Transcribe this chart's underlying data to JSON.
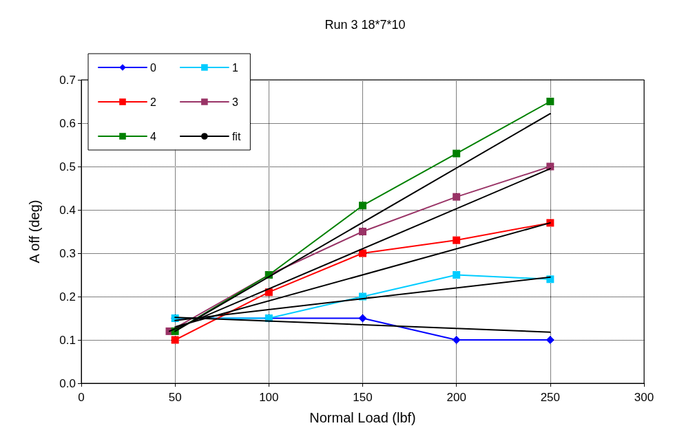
{
  "chart_data": {
    "type": "line",
    "title": "Run 3 18*7*10",
    "xlabel": "Normal Load (lbf)",
    "ylabel": "A off (deg)",
    "xlim": [
      0,
      300
    ],
    "xticks": [
      0,
      50,
      100,
      150,
      200,
      250,
      300
    ],
    "ylim": [
      0,
      0.7
    ],
    "yticks": [
      {
        "value": 0,
        "label": "0.0"
      },
      0.1,
      0.2,
      0.3,
      0.4,
      0.5,
      0.6,
      0.7
    ],
    "grid": true,
    "legend": "top left",
    "line_style": "solid",
    "series": [
      {
        "name": "0",
        "color": "#0000ff",
        "marker": "diamond",
        "x": [
          50,
          100,
          150,
          200,
          250
        ],
        "values": [
          0.15,
          0.15,
          0.15,
          0.1,
          0.1
        ]
      },
      {
        "name": "1",
        "color": "#00ccff",
        "marker": "square",
        "x": [
          50,
          100,
          150,
          200,
          250
        ],
        "values": [
          0.15,
          0.15,
          0.2,
          0.25,
          0.24
        ]
      },
      {
        "name": "2",
        "color": "#ff0000",
        "marker": "square",
        "x": [
          50,
          100,
          150,
          200,
          250
        ],
        "values": [
          0.1,
          0.21,
          0.3,
          0.33,
          0.37
        ]
      },
      {
        "name": "3",
        "color": "#993366",
        "marker": "square",
        "x": [
          47,
          100,
          150,
          200,
          250
        ],
        "values": [
          0.12,
          0.25,
          0.35,
          0.43,
          0.5
        ]
      },
      {
        "name": "4",
        "color": "#008000",
        "marker": "square",
        "x": [
          50,
          100,
          150,
          200,
          250
        ],
        "values": [
          0.12,
          0.25,
          0.41,
          0.53,
          0.65
        ]
      },
      {
        "name": "fit",
        "color": "#000000",
        "marker": "none",
        "x": [
          50,
          250
        ],
        "values": [
          0.152,
          0.118
        ]
      },
      {
        "color": "#000000",
        "marker": "none",
        "x": [
          50,
          250
        ],
        "values": [
          0.145,
          0.245
        ]
      },
      {
        "color": "#000000",
        "marker": "none",
        "x": [
          50,
          250
        ],
        "values": [
          0.13,
          0.37
        ]
      },
      {
        "color": "#000000",
        "marker": "none",
        "x": [
          47,
          250
        ],
        "values": [
          0.12,
          0.495
        ]
      },
      {
        "color": "#000000",
        "marker": "none",
        "x": [
          50,
          250
        ],
        "values": [
          0.12,
          0.622
        ]
      }
    ]
  }
}
